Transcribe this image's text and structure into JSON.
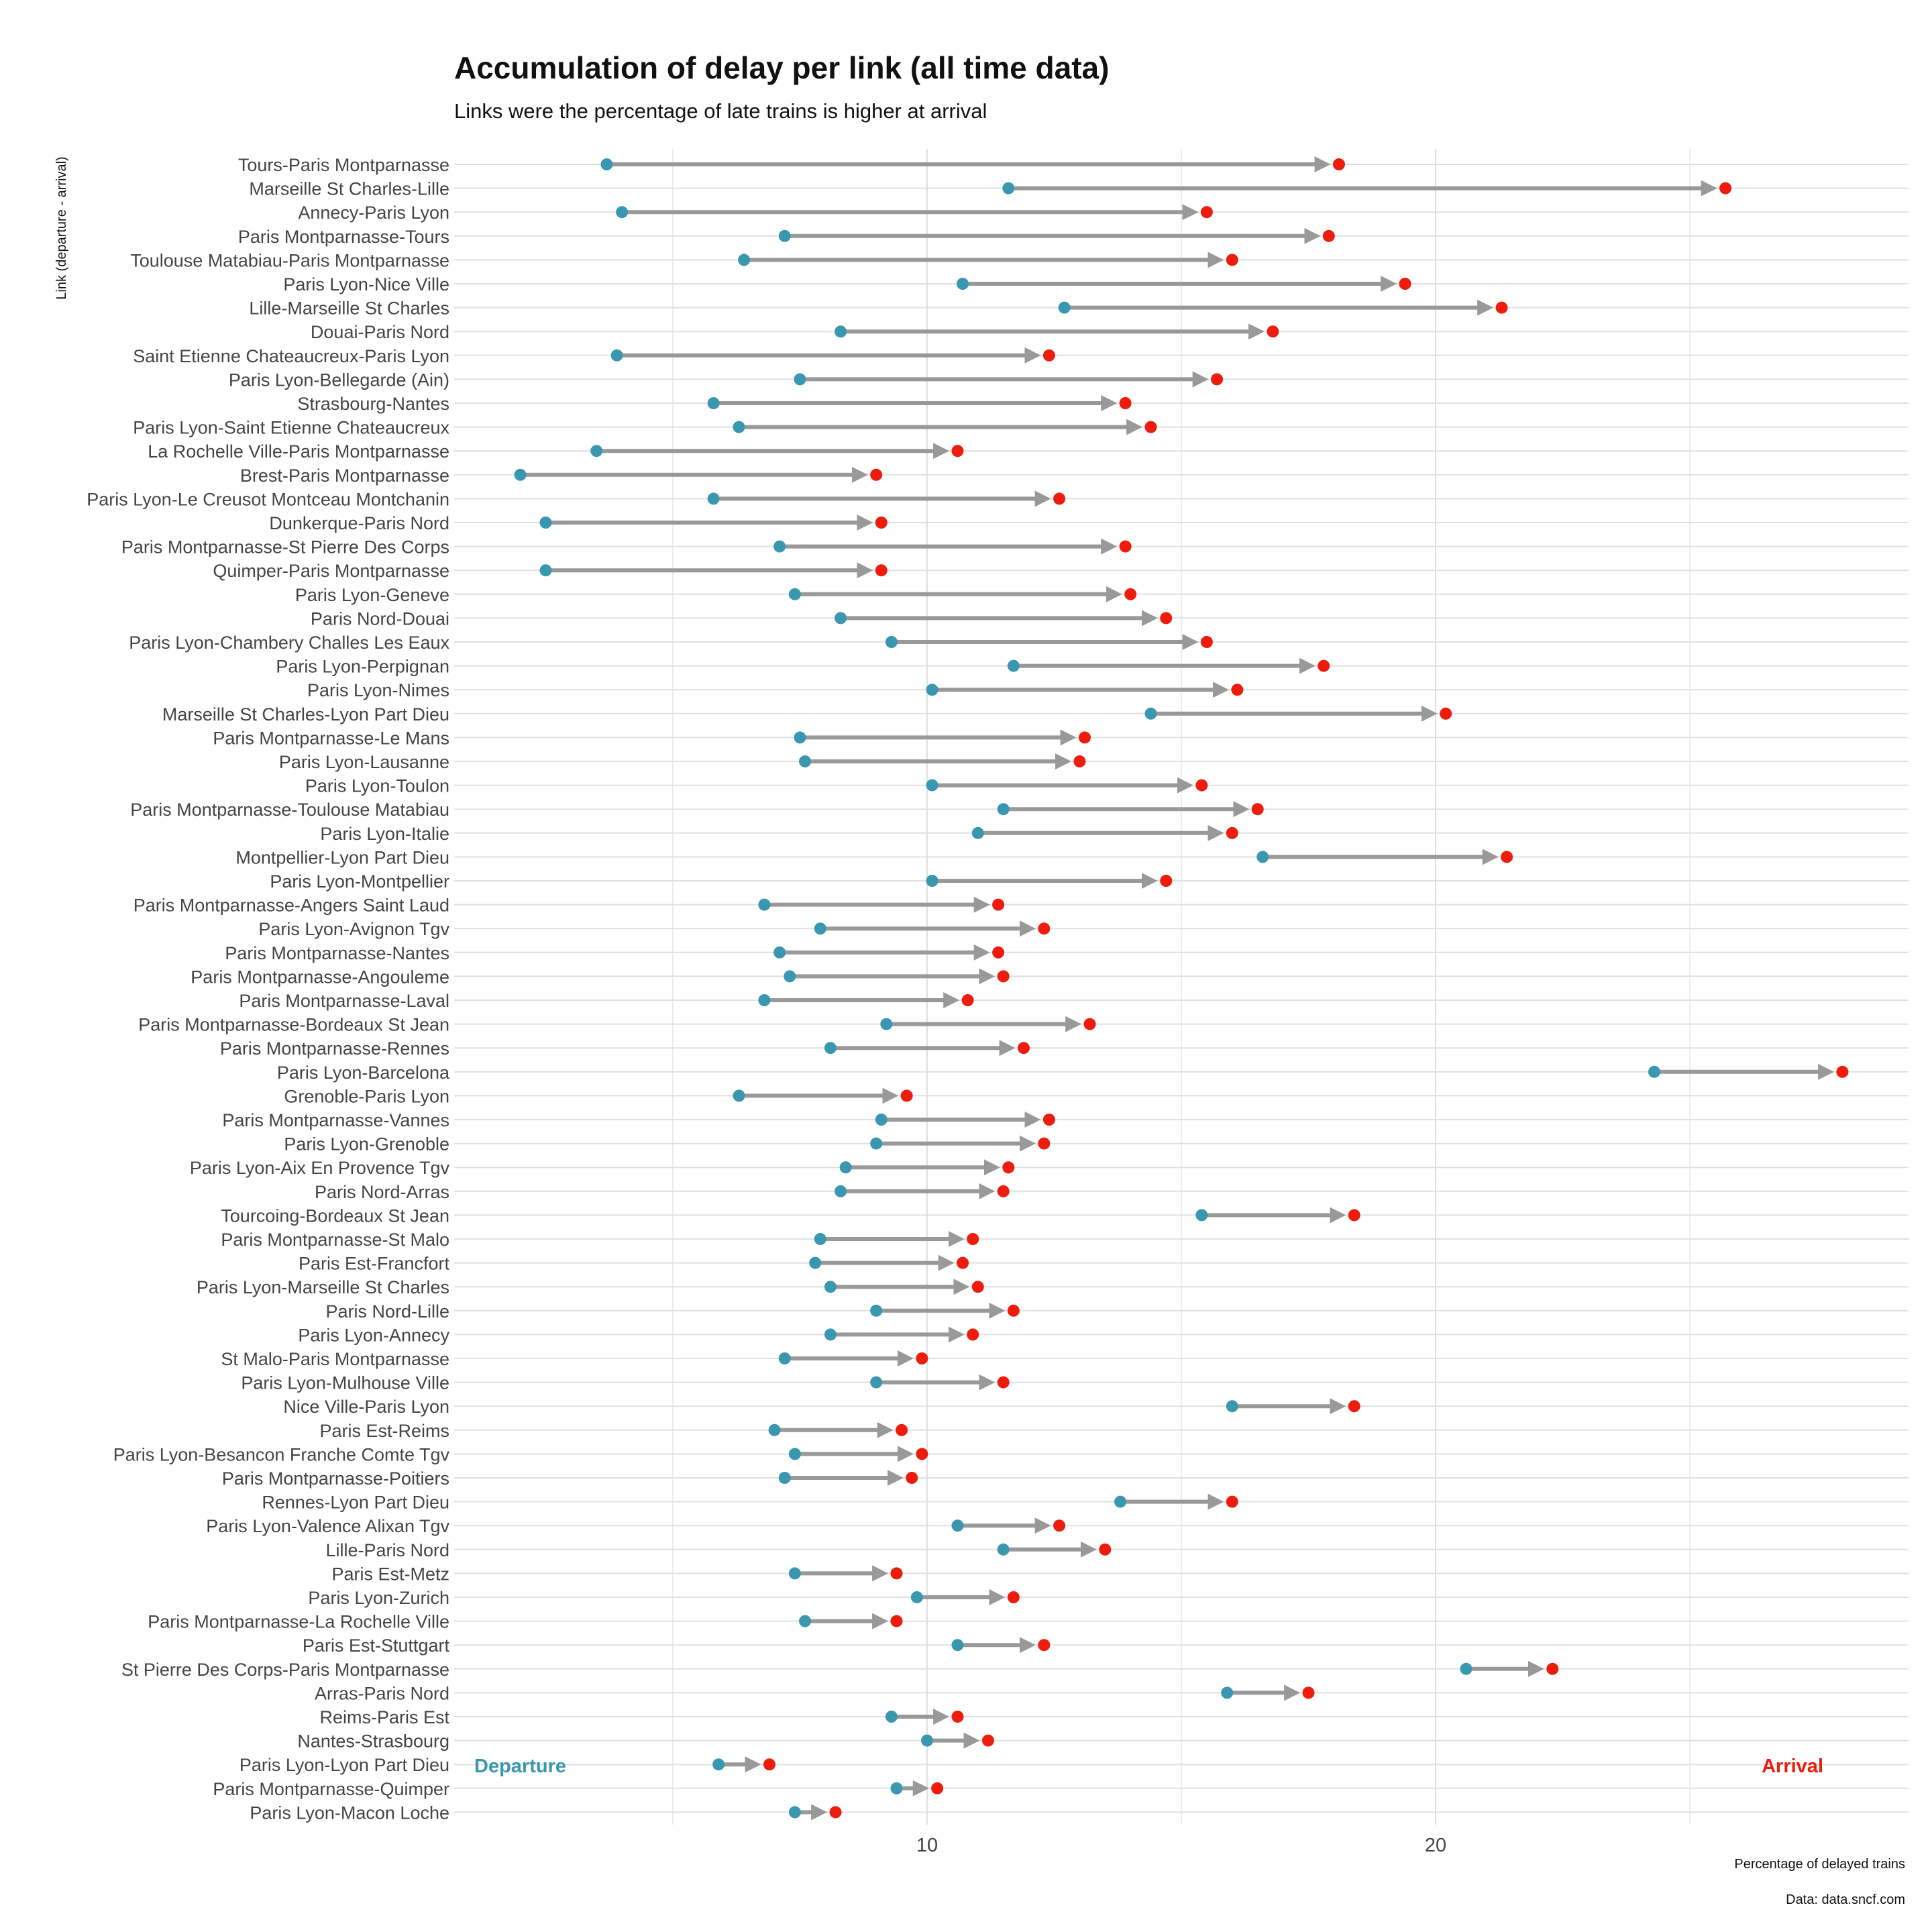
{
  "chart_data": {
    "type": "dumbbell",
    "title": "Accumulation of delay per link (all time data)",
    "subtitle": "Links were the percentage of late trains is higher at arrival",
    "xlabel": "Percentage of delayed trains",
    "ylabel": "Link (departure - arrival)",
    "caption": "Data: data.sncf.com",
    "xlim": [
      0.7,
      29.3
    ],
    "xticks": [
      10,
      20
    ],
    "grid": true,
    "legend": {
      "departure_label": "Departure",
      "arrival_label": "Arrival",
      "placement": "bottom"
    },
    "colors": {
      "departure": "#3a97b0",
      "arrival": "#ee1c0c",
      "segment": "#999999",
      "grid": "#e0e0e0"
    },
    "series": [
      {
        "name": "Departure"
      },
      {
        "name": "Arrival"
      }
    ],
    "links": [
      {
        "link": "Tours-Paris Montparnasse",
        "departure": 3.7,
        "arrival": 18.1
      },
      {
        "link": "Marseille St Charles-Lille",
        "departure": 11.6,
        "arrival": 25.7
      },
      {
        "link": "Annecy-Paris Lyon",
        "departure": 4.0,
        "arrival": 15.5
      },
      {
        "link": "Paris Montparnasse-Tours",
        "departure": 7.2,
        "arrival": 17.9
      },
      {
        "link": "Toulouse Matabiau-Paris Montparnasse",
        "departure": 6.4,
        "arrival": 16.0
      },
      {
        "link": "Paris Lyon-Nice Ville",
        "departure": 10.7,
        "arrival": 19.4
      },
      {
        "link": "Lille-Marseille St Charles",
        "departure": 12.7,
        "arrival": 21.3
      },
      {
        "link": "Douai-Paris Nord",
        "departure": 8.3,
        "arrival": 16.8
      },
      {
        "link": "Saint Etienne Chateaucreux-Paris Lyon",
        "departure": 3.9,
        "arrival": 12.4
      },
      {
        "link": "Paris Lyon-Bellegarde (Ain)",
        "departure": 7.5,
        "arrival": 15.7
      },
      {
        "link": "Strasbourg-Nantes",
        "departure": 5.8,
        "arrival": 13.9
      },
      {
        "link": "Paris Lyon-Saint Etienne Chateaucreux",
        "departure": 6.3,
        "arrival": 14.4
      },
      {
        "link": "La Rochelle Ville-Paris Montparnasse",
        "departure": 3.5,
        "arrival": 10.6
      },
      {
        "link": "Brest-Paris Montparnasse",
        "departure": 2.0,
        "arrival": 9.0
      },
      {
        "link": "Paris Lyon-Le Creusot Montceau Montchanin",
        "departure": 5.8,
        "arrival": 12.6
      },
      {
        "link": "Dunkerque-Paris Nord",
        "departure": 2.5,
        "arrival": 9.1
      },
      {
        "link": "Paris Montparnasse-St Pierre Des Corps",
        "departure": 7.1,
        "arrival": 13.9
      },
      {
        "link": "Quimper-Paris Montparnasse",
        "departure": 2.5,
        "arrival": 9.1
      },
      {
        "link": "Paris Lyon-Geneve",
        "departure": 7.4,
        "arrival": 14.0
      },
      {
        "link": "Paris Nord-Douai",
        "departure": 8.3,
        "arrival": 14.7
      },
      {
        "link": "Paris Lyon-Chambery Challes Les Eaux",
        "departure": 9.3,
        "arrival": 15.5
      },
      {
        "link": "Paris Lyon-Perpignan",
        "departure": 11.7,
        "arrival": 17.8
      },
      {
        "link": "Paris Lyon-Nimes",
        "departure": 10.1,
        "arrival": 16.1
      },
      {
        "link": "Marseille St Charles-Lyon Part Dieu",
        "departure": 14.4,
        "arrival": 20.2
      },
      {
        "link": "Paris Montparnasse-Le Mans",
        "departure": 7.5,
        "arrival": 13.1
      },
      {
        "link": "Paris Lyon-Lausanne",
        "departure": 7.6,
        "arrival": 13.0
      },
      {
        "link": "Paris Lyon-Toulon",
        "departure": 10.1,
        "arrival": 15.4
      },
      {
        "link": "Paris Montparnasse-Toulouse Matabiau",
        "departure": 11.5,
        "arrival": 16.5
      },
      {
        "link": "Paris Lyon-Italie",
        "departure": 11.0,
        "arrival": 16.0
      },
      {
        "link": "Montpellier-Lyon Part Dieu",
        "departure": 16.6,
        "arrival": 21.4
      },
      {
        "link": "Paris Lyon-Montpellier",
        "departure": 10.1,
        "arrival": 14.7
      },
      {
        "link": "Paris Montparnasse-Angers Saint Laud",
        "departure": 6.8,
        "arrival": 11.4
      },
      {
        "link": "Paris Lyon-Avignon Tgv",
        "departure": 7.9,
        "arrival": 12.3
      },
      {
        "link": "Paris Montparnasse-Nantes",
        "departure": 7.1,
        "arrival": 11.4
      },
      {
        "link": "Paris Montparnasse-Angouleme",
        "departure": 7.3,
        "arrival": 11.5
      },
      {
        "link": "Paris Montparnasse-Laval",
        "departure": 6.8,
        "arrival": 10.8
      },
      {
        "link": "Paris Montparnasse-Bordeaux St Jean",
        "departure": 9.2,
        "arrival": 13.2
      },
      {
        "link": "Paris Montparnasse-Rennes",
        "departure": 8.1,
        "arrival": 11.9
      },
      {
        "link": "Paris Lyon-Barcelona",
        "departure": 24.3,
        "arrival": 28.0
      },
      {
        "link": "Grenoble-Paris Lyon",
        "departure": 6.3,
        "arrival": 9.6
      },
      {
        "link": "Paris Montparnasse-Vannes",
        "departure": 9.1,
        "arrival": 12.4
      },
      {
        "link": "Paris Lyon-Grenoble",
        "departure": 9.0,
        "arrival": 12.3
      },
      {
        "link": "Paris Lyon-Aix En Provence Tgv",
        "departure": 8.4,
        "arrival": 11.6
      },
      {
        "link": "Paris Nord-Arras",
        "departure": 8.3,
        "arrival": 11.5
      },
      {
        "link": "Tourcoing-Bordeaux St Jean",
        "departure": 15.4,
        "arrival": 18.4
      },
      {
        "link": "Paris Montparnasse-St Malo",
        "departure": 7.9,
        "arrival": 10.9
      },
      {
        "link": "Paris Est-Francfort",
        "departure": 7.8,
        "arrival": 10.7
      },
      {
        "link": "Paris Lyon-Marseille St Charles",
        "departure": 8.1,
        "arrival": 11.0
      },
      {
        "link": "Paris Nord-Lille",
        "departure": 9.0,
        "arrival": 11.7
      },
      {
        "link": "Paris Lyon-Annecy",
        "departure": 8.1,
        "arrival": 10.9
      },
      {
        "link": "St Malo-Paris Montparnasse",
        "departure": 7.2,
        "arrival": 9.9
      },
      {
        "link": "Paris Lyon-Mulhouse Ville",
        "departure": 9.0,
        "arrival": 11.5
      },
      {
        "link": "Nice Ville-Paris Lyon",
        "departure": 16.0,
        "arrival": 18.4
      },
      {
        "link": "Paris Est-Reims",
        "departure": 7.0,
        "arrival": 9.5
      },
      {
        "link": "Paris Lyon-Besancon Franche Comte Tgv",
        "departure": 7.4,
        "arrival": 9.9
      },
      {
        "link": "Paris Montparnasse-Poitiers",
        "departure": 7.2,
        "arrival": 9.7
      },
      {
        "link": "Rennes-Lyon Part Dieu",
        "departure": 13.8,
        "arrival": 16.0
      },
      {
        "link": "Paris Lyon-Valence Alixan Tgv",
        "departure": 10.6,
        "arrival": 12.6
      },
      {
        "link": "Lille-Paris Nord",
        "departure": 11.5,
        "arrival": 13.5
      },
      {
        "link": "Paris Est-Metz",
        "departure": 7.4,
        "arrival": 9.4
      },
      {
        "link": "Paris Lyon-Zurich",
        "departure": 9.8,
        "arrival": 11.7
      },
      {
        "link": "Paris Montparnasse-La Rochelle Ville",
        "departure": 7.6,
        "arrival": 9.4
      },
      {
        "link": "Paris Est-Stuttgart",
        "departure": 10.6,
        "arrival": 12.3
      },
      {
        "link": "St Pierre Des Corps-Paris Montparnasse",
        "departure": 20.6,
        "arrival": 22.3
      },
      {
        "link": "Arras-Paris Nord",
        "departure": 15.9,
        "arrival": 17.5
      },
      {
        "link": "Reims-Paris Est",
        "departure": 9.3,
        "arrival": 10.6
      },
      {
        "link": "Nantes-Strasbourg",
        "departure": 10.0,
        "arrival": 11.2
      },
      {
        "link": "Paris Lyon-Lyon Part Dieu",
        "departure": 5.9,
        "arrival": 6.9
      },
      {
        "link": "Paris Montparnasse-Quimper",
        "departure": 9.4,
        "arrival": 10.2
      },
      {
        "link": "Paris Lyon-Macon Loche",
        "departure": 7.4,
        "arrival": 8.2
      }
    ]
  }
}
